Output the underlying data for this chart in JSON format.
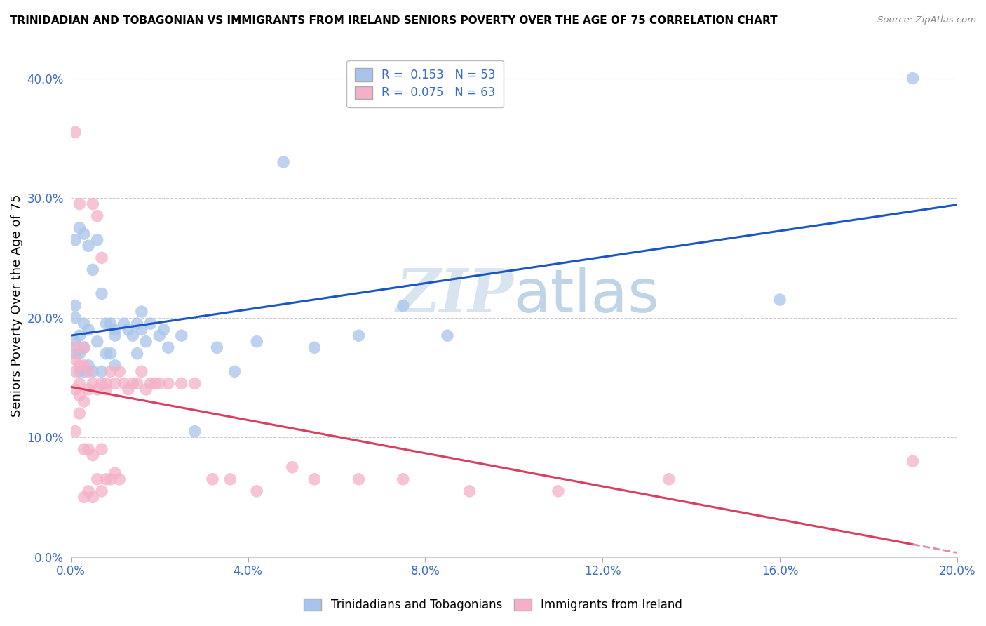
{
  "title": "TRINIDADIAN AND TOBAGONIAN VS IMMIGRANTS FROM IRELAND SENIORS POVERTY OVER THE AGE OF 75 CORRELATION CHART",
  "source": "Source: ZipAtlas.com",
  "xlabel": "",
  "ylabel": "Seniors Poverty Over the Age of 75",
  "xlim": [
    0,
    0.2
  ],
  "ylim": [
    0,
    0.42
  ],
  "xticks": [
    0.0,
    0.04,
    0.08,
    0.12,
    0.16,
    0.2
  ],
  "yticks": [
    0.0,
    0.1,
    0.2,
    0.3,
    0.4
  ],
  "blue_R": 0.153,
  "blue_N": 53,
  "pink_R": 0.075,
  "pink_N": 63,
  "blue_color": "#a8c4ec",
  "pink_color": "#f4b0c8",
  "blue_line_color": "#1a56c4",
  "pink_line_color": "#d94060",
  "pink_line_dash_color": "#e88aa0",
  "watermark_color": "#d8e4f0",
  "legend_label_blue": "Trinidadians and Tobagonians",
  "legend_label_pink": "Immigrants from Ireland",
  "blue_x": [
    0.001,
    0.001,
    0.001,
    0.001,
    0.001,
    0.002,
    0.002,
    0.002,
    0.002,
    0.003,
    0.003,
    0.003,
    0.003,
    0.004,
    0.004,
    0.004,
    0.005,
    0.005,
    0.006,
    0.006,
    0.007,
    0.007,
    0.008,
    0.008,
    0.009,
    0.009,
    0.01,
    0.01,
    0.01,
    0.012,
    0.013,
    0.014,
    0.015,
    0.015,
    0.016,
    0.016,
    0.017,
    0.018,
    0.02,
    0.021,
    0.022,
    0.025,
    0.028,
    0.033,
    0.037,
    0.042,
    0.048,
    0.055,
    0.065,
    0.075,
    0.085,
    0.16,
    0.19
  ],
  "blue_y": [
    0.17,
    0.18,
    0.2,
    0.21,
    0.265,
    0.155,
    0.17,
    0.185,
    0.275,
    0.155,
    0.175,
    0.195,
    0.27,
    0.16,
    0.19,
    0.26,
    0.155,
    0.24,
    0.18,
    0.265,
    0.155,
    0.22,
    0.17,
    0.195,
    0.17,
    0.195,
    0.16,
    0.185,
    0.19,
    0.195,
    0.19,
    0.185,
    0.17,
    0.195,
    0.19,
    0.205,
    0.18,
    0.195,
    0.185,
    0.19,
    0.175,
    0.185,
    0.105,
    0.175,
    0.155,
    0.18,
    0.33,
    0.175,
    0.185,
    0.21,
    0.185,
    0.215,
    0.4
  ],
  "pink_x": [
    0.001,
    0.001,
    0.001,
    0.001,
    0.001,
    0.001,
    0.002,
    0.002,
    0.002,
    0.002,
    0.002,
    0.003,
    0.003,
    0.003,
    0.003,
    0.003,
    0.004,
    0.004,
    0.004,
    0.004,
    0.005,
    0.005,
    0.005,
    0.005,
    0.006,
    0.006,
    0.006,
    0.007,
    0.007,
    0.007,
    0.007,
    0.008,
    0.008,
    0.008,
    0.009,
    0.009,
    0.01,
    0.01,
    0.011,
    0.011,
    0.012,
    0.013,
    0.014,
    0.015,
    0.016,
    0.017,
    0.018,
    0.019,
    0.02,
    0.022,
    0.025,
    0.028,
    0.032,
    0.036,
    0.042,
    0.05,
    0.055,
    0.065,
    0.075,
    0.09,
    0.11,
    0.135,
    0.19
  ],
  "pink_y": [
    0.14,
    0.155,
    0.165,
    0.175,
    0.105,
    0.355,
    0.12,
    0.135,
    0.145,
    0.16,
    0.295,
    0.05,
    0.09,
    0.13,
    0.16,
    0.175,
    0.055,
    0.09,
    0.14,
    0.155,
    0.05,
    0.085,
    0.145,
    0.295,
    0.065,
    0.14,
    0.285,
    0.055,
    0.09,
    0.145,
    0.25,
    0.065,
    0.14,
    0.145,
    0.065,
    0.155,
    0.07,
    0.145,
    0.065,
    0.155,
    0.145,
    0.14,
    0.145,
    0.145,
    0.155,
    0.14,
    0.145,
    0.145,
    0.145,
    0.145,
    0.145,
    0.145,
    0.065,
    0.065,
    0.055,
    0.075,
    0.065,
    0.065,
    0.065,
    0.055,
    0.055,
    0.065,
    0.08
  ]
}
